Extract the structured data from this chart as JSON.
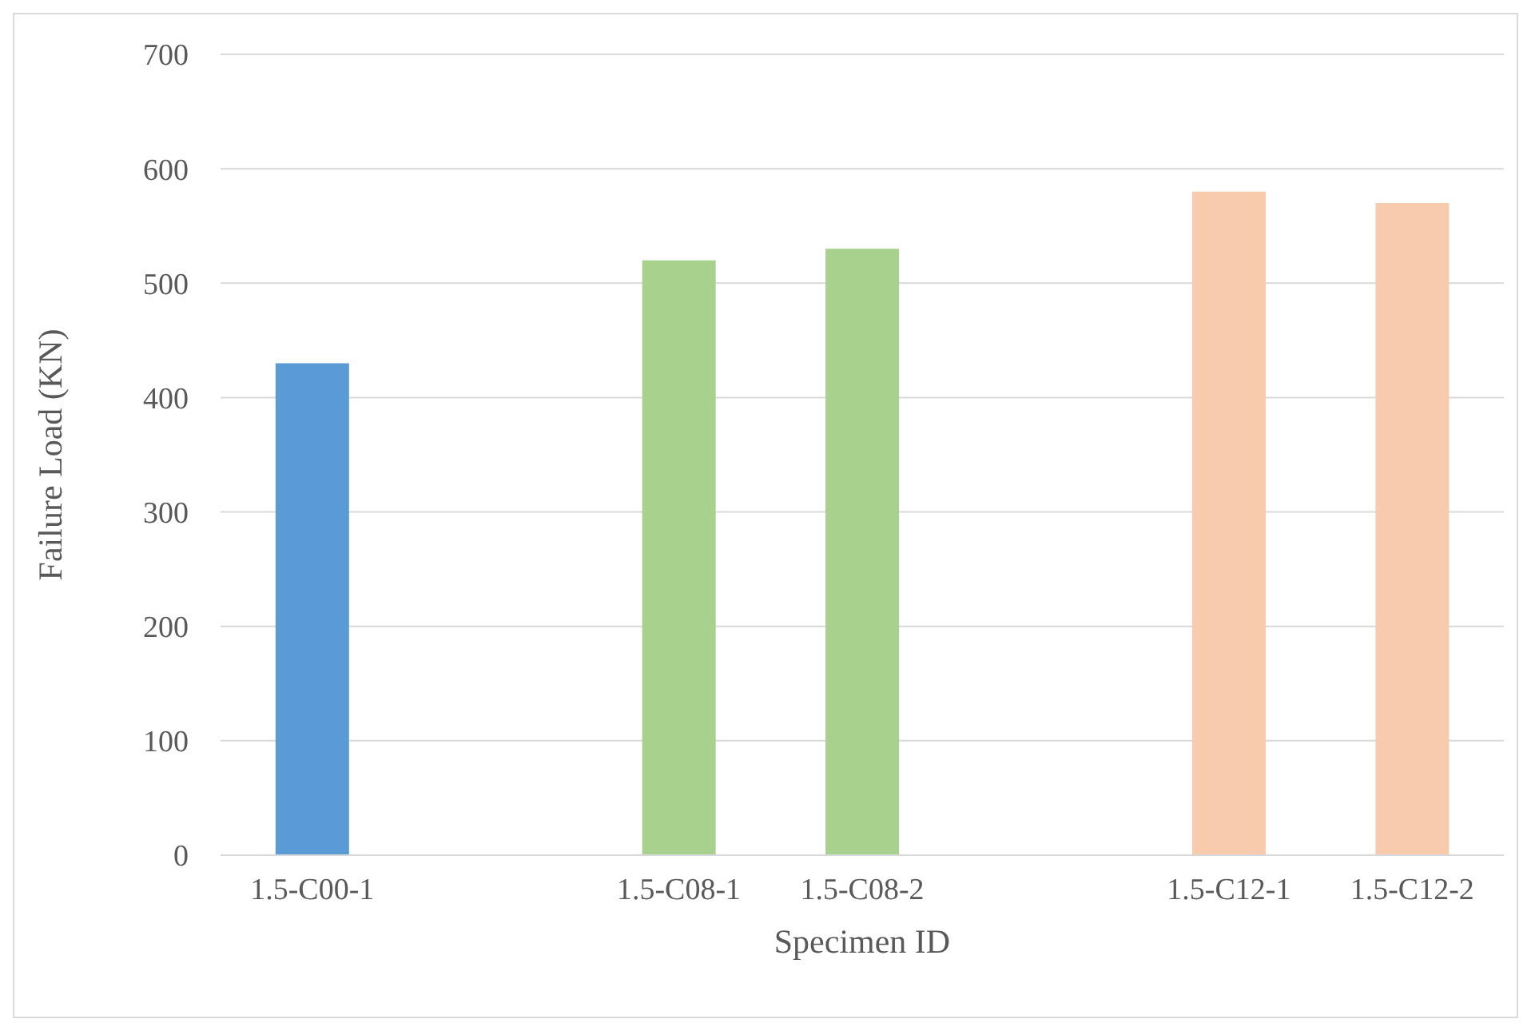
{
  "chart_data": {
    "type": "bar",
    "xlabel": "Specimen ID",
    "ylabel": "Failure Load (KN)",
    "categories": [
      "1.5-C00-1",
      null,
      "1.5-C08-1",
      "1.5-C08-2",
      null,
      "1.5-C12-1",
      "1.5-C12-2"
    ],
    "values": [
      430,
      null,
      520,
      530,
      null,
      580,
      570
    ],
    "colors": [
      "#5b9bd5",
      null,
      "#a9d18e",
      "#a9d18e",
      null,
      "#f8cbad",
      "#f8cbad"
    ],
    "ylim": [
      0,
      700
    ],
    "yticks": [
      0,
      100,
      200,
      300,
      400,
      500,
      600,
      700
    ],
    "grid": "y"
  }
}
